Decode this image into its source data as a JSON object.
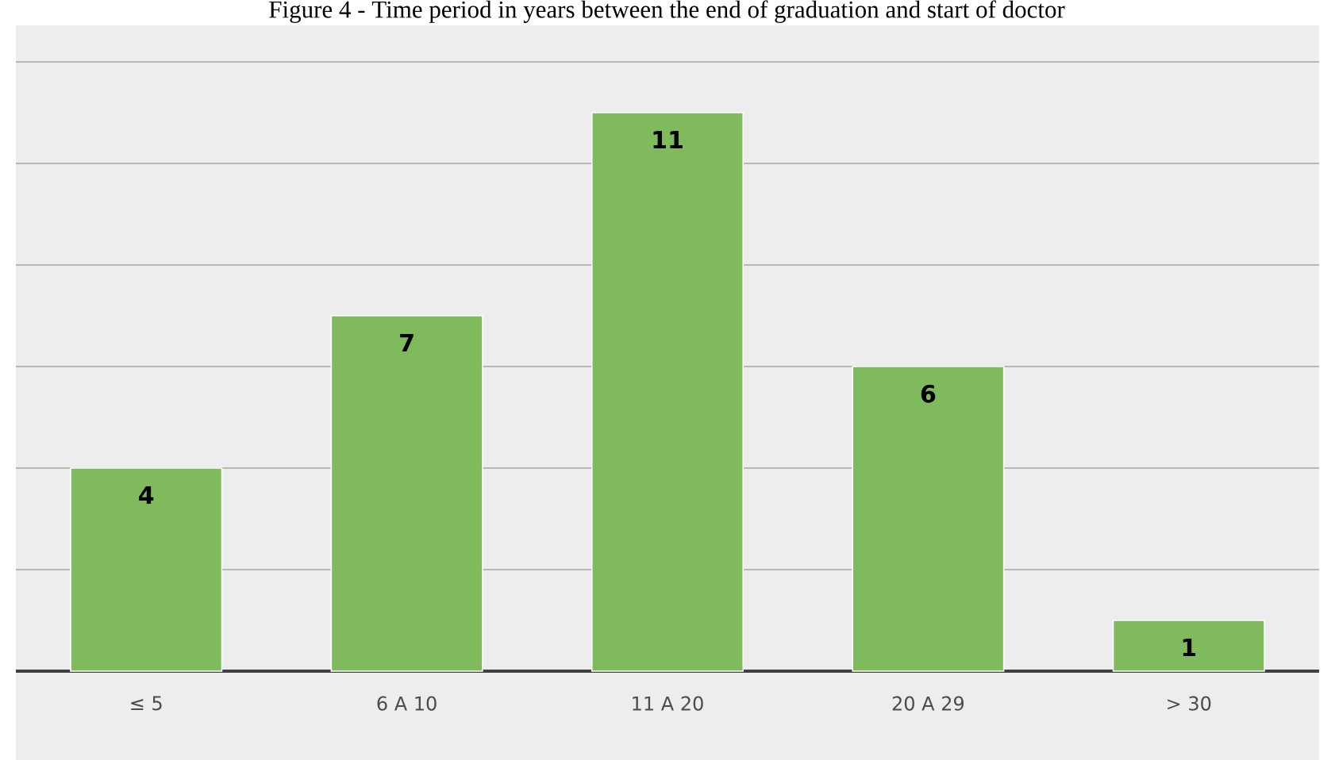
{
  "chart_data": {
    "type": "bar",
    "title": "Figure 4 - Time period in years between the end of graduation and start of doctor",
    "categories": [
      "≤ 5",
      "6 A 10",
      "11 A 20",
      "20 A 29",
      "> 30"
    ],
    "values": [
      4,
      7,
      11,
      6,
      1
    ],
    "color": "#7fba5c",
    "data_labels": true,
    "yticks": [
      {
        "value": 0,
        "label": null
      },
      {
        "value": 2,
        "label": null
      },
      {
        "value": 4,
        "label": null
      },
      {
        "value": 6,
        "label": null
      },
      {
        "value": 8,
        "label": null
      },
      {
        "value": 10,
        "label": null
      },
      {
        "value": 12,
        "label": null
      }
    ],
    "grid": "y",
    "tick_labels": "x"
  }
}
